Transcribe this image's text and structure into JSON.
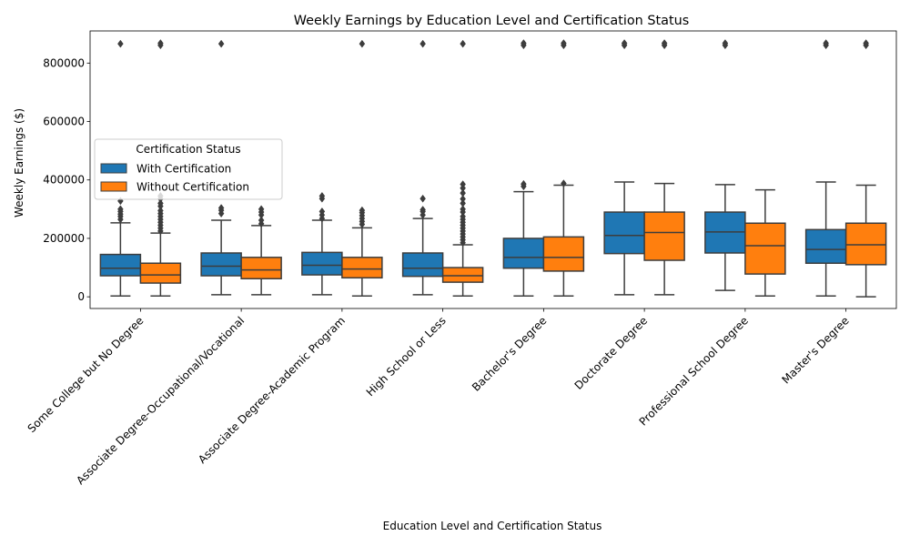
{
  "chart_data": {
    "type": "boxplot",
    "title": "Weekly Earnings by Education Level and Certification Status",
    "xlabel": "Education Level and Certification Status",
    "ylabel": "Weekly Earnings ($)",
    "ylim": [
      -40000,
      910000
    ],
    "yticks": [
      0,
      200000,
      400000,
      600000,
      800000
    ],
    "ytick_labels": [
      "0",
      "200000",
      "400000",
      "600000",
      "800000"
    ],
    "grid": false,
    "legend": {
      "title": "Certification Status",
      "placement": "center-left"
    },
    "categories": [
      "Some College but No Degree",
      "Associate Degree-Occupational/Vocational",
      "Associate Degree-Academic Program",
      "High School or Less",
      "Bachelor's Degree",
      "Doctorate Degree",
      "Professional School Degree",
      "Master's Degree"
    ],
    "series": [
      {
        "name": "With Certification",
        "color": "#1f77b4",
        "boxes": [
          {
            "whislo": 3000,
            "q1": 72000,
            "med": 98000,
            "q3": 145000,
            "whishi": 253000,
            "fliers": [
              265000,
              275000,
              283000,
              292000,
              300000,
              328000,
              866000
            ]
          },
          {
            "whislo": 7000,
            "q1": 72000,
            "med": 105000,
            "q3": 150000,
            "whishi": 262000,
            "fliers": [
              285000,
              296000,
              304000,
              866000
            ]
          },
          {
            "whislo": 7000,
            "q1": 75000,
            "med": 108000,
            "q3": 152000,
            "whishi": 262000,
            "fliers": [
              268000,
              280000,
              292000,
              336000,
              345000
            ]
          },
          {
            "whislo": 7000,
            "q1": 70000,
            "med": 98000,
            "q3": 150000,
            "whishi": 268000,
            "fliers": [
              280000,
              292000,
              298000,
              336000,
              866000
            ]
          },
          {
            "whislo": 3000,
            "q1": 98000,
            "med": 135000,
            "q3": 200000,
            "whishi": 360000,
            "fliers": [
              378000,
              386000,
              861000,
              868000
            ]
          },
          {
            "whislo": 7000,
            "q1": 148000,
            "med": 210000,
            "q3": 290000,
            "whishi": 393000,
            "fliers": [
              861000,
              868000
            ]
          },
          {
            "whislo": 22000,
            "q1": 150000,
            "med": 222000,
            "q3": 290000,
            "whishi": 384000,
            "fliers": [
              861000,
              868000
            ]
          },
          {
            "whislo": 3000,
            "q1": 115000,
            "med": 162000,
            "q3": 230000,
            "whishi": 393000,
            "fliers": [
              861000,
              868000
            ]
          }
        ]
      },
      {
        "name": "Without Certification",
        "color": "#ff7f0e",
        "boxes": [
          {
            "whislo": 3000,
            "q1": 47000,
            "med": 75000,
            "q3": 115000,
            "whishi": 218000,
            "fliers": [
              225000,
              235000,
              245000,
              255000,
              265000,
              275000,
              285000,
              295000,
              310000,
              320000,
              335000,
              345000,
              861000,
              868000
            ]
          },
          {
            "whislo": 7000,
            "q1": 62000,
            "med": 92000,
            "q3": 135000,
            "whishi": 244000,
            "fliers": [
              250000,
              262000,
              280000,
              290000,
              300000
            ]
          },
          {
            "whislo": 3000,
            "q1": 65000,
            "med": 95000,
            "q3": 135000,
            "whishi": 236000,
            "fliers": [
              248000,
              258000,
              268000,
              278000,
              288000,
              296000,
              866000
            ]
          },
          {
            "whislo": 3000,
            "q1": 50000,
            "med": 72000,
            "q3": 100000,
            "whishi": 178000,
            "fliers": [
              185000,
              195000,
              205000,
              215000,
              225000,
              235000,
              245000,
              255000,
              265000,
              275000,
              290000,
              300000,
              320000,
              335000,
              355000,
              372000,
              385000,
              866000
            ]
          },
          {
            "whislo": 3000,
            "q1": 88000,
            "med": 135000,
            "q3": 205000,
            "whishi": 382000,
            "fliers": [
              388000,
              861000,
              868000
            ]
          },
          {
            "whislo": 7000,
            "q1": 125000,
            "med": 220000,
            "q3": 290000,
            "whishi": 388000,
            "fliers": [
              861000,
              868000
            ]
          },
          {
            "whislo": 3000,
            "q1": 78000,
            "med": 175000,
            "q3": 252000,
            "whishi": 366000,
            "fliers": []
          },
          {
            "whislo": 0,
            "q1": 110000,
            "med": 178000,
            "q3": 252000,
            "whishi": 382000,
            "fliers": [
              861000,
              868000
            ]
          }
        ]
      }
    ]
  }
}
